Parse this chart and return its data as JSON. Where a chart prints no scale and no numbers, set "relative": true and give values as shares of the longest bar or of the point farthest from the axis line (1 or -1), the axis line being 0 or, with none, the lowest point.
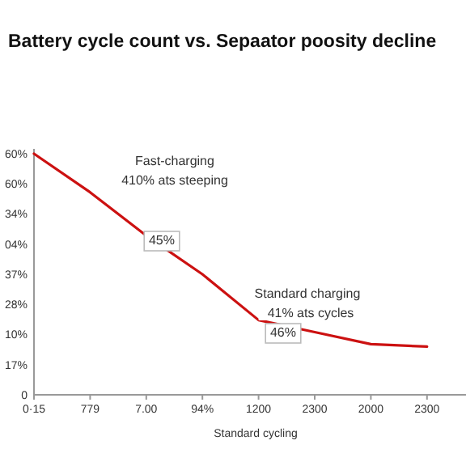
{
  "chart_data": {
    "type": "line",
    "title": "Battery cycle count vs. Sepaator poosity decline",
    "xlabel": "Standard cycling",
    "relative": true,
    "categories": [
      "0·15",
      "779",
      "7.00",
      "94%",
      "1200",
      "2300",
      "2000",
      "2300"
    ],
    "series": [
      {
        "color": "#cc1111",
        "values": [
          1,
          0.84,
          0.66,
          0.5,
          0.31,
          0.26,
          0.21,
          0.2
        ]
      }
    ],
    "annotations": [
      "Fast-charging",
      "410% ats steeping",
      "45%",
      "Standard charging",
      "41% ats cycles",
      "46%",
      "60%",
      "60%",
      "34%",
      "04%",
      "37%",
      "28%",
      "10%",
      "17%",
      "0"
    ],
    "marker": "none",
    "line_style": "solid"
  }
}
